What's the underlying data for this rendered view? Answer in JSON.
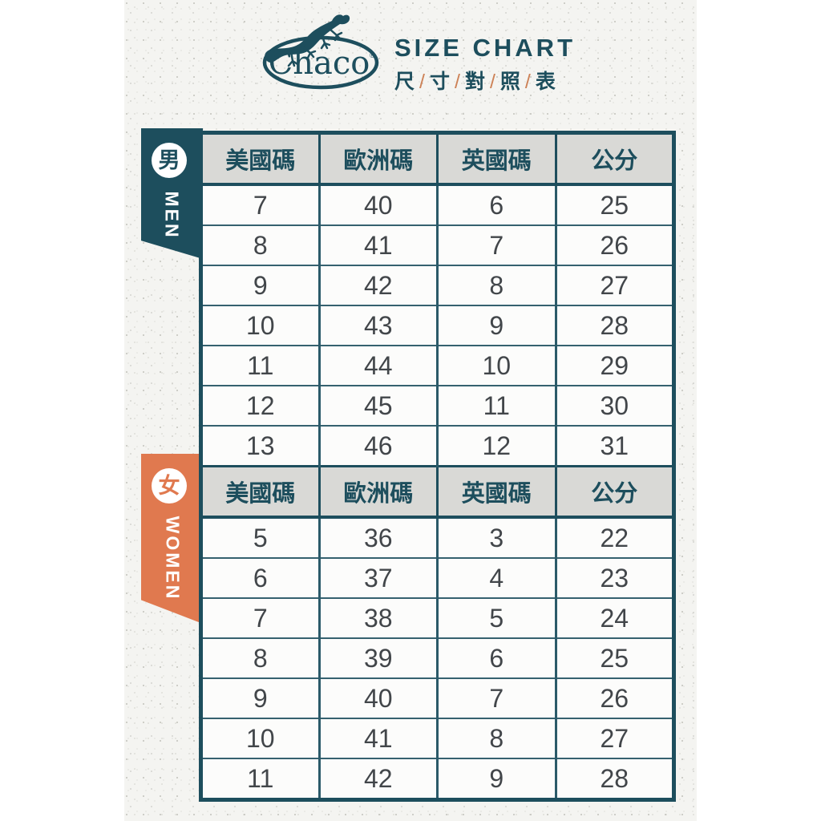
{
  "brand": {
    "logo_text": "Chaco",
    "registered_mark": "®",
    "title": "SIZE CHART",
    "subtitle": {
      "c0": "尺",
      "c1": "寸",
      "c2": "對",
      "c3": "照",
      "c4": "表",
      "sep": "/"
    }
  },
  "colors": {
    "teal": "#1d4e5d",
    "orange": "#e0794f",
    "header_bg": "#d9d9d6",
    "number_text": "#42464a",
    "slash_orange": "#cd8257",
    "paper": "#f4f4f1"
  },
  "men": {
    "badge": "男",
    "label": "MEN",
    "headers": [
      "美國碼",
      "歐洲碼",
      "英國碼",
      "公分"
    ],
    "rows": [
      [
        7,
        40,
        6,
        25
      ],
      [
        8,
        41,
        7,
        26
      ],
      [
        9,
        42,
        8,
        27
      ],
      [
        10,
        43,
        9,
        28
      ],
      [
        11,
        44,
        10,
        29
      ],
      [
        12,
        45,
        11,
        30
      ],
      [
        13,
        46,
        12,
        31
      ]
    ]
  },
  "women": {
    "badge": "女",
    "label": "WOMEN",
    "headers": [
      "美國碼",
      "歐洲碼",
      "英國碼",
      "公分"
    ],
    "rows": [
      [
        5,
        36,
        3,
        22
      ],
      [
        6,
        37,
        4,
        23
      ],
      [
        7,
        38,
        5,
        24
      ],
      [
        8,
        39,
        6,
        25
      ],
      [
        9,
        40,
        7,
        26
      ],
      [
        10,
        41,
        8,
        27
      ],
      [
        11,
        42,
        9,
        28
      ]
    ]
  },
  "chart_data": [
    {
      "type": "table",
      "title": "男 MEN",
      "columns": [
        "美國碼",
        "歐洲碼",
        "英國碼",
        "公分"
      ],
      "rows": [
        [
          7,
          40,
          6,
          25
        ],
        [
          8,
          41,
          7,
          26
        ],
        [
          9,
          42,
          8,
          27
        ],
        [
          10,
          43,
          9,
          28
        ],
        [
          11,
          44,
          10,
          29
        ],
        [
          12,
          45,
          11,
          30
        ],
        [
          13,
          46,
          12,
          31
        ]
      ]
    },
    {
      "type": "table",
      "title": "女 WOMEN",
      "columns": [
        "美國碼",
        "歐洲碼",
        "英國碼",
        "公分"
      ],
      "rows": [
        [
          5,
          36,
          3,
          22
        ],
        [
          6,
          37,
          4,
          23
        ],
        [
          7,
          38,
          5,
          24
        ],
        [
          8,
          39,
          6,
          25
        ],
        [
          9,
          40,
          7,
          26
        ],
        [
          10,
          41,
          8,
          27
        ],
        [
          11,
          42,
          9,
          28
        ]
      ]
    }
  ]
}
